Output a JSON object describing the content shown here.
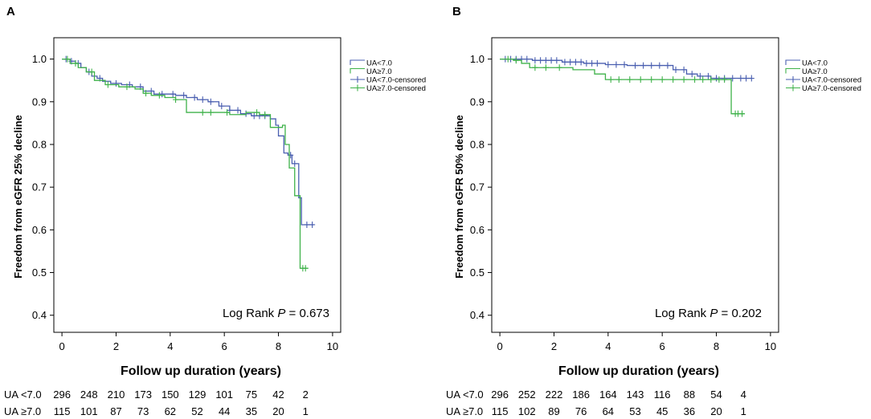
{
  "chart_data": [
    {
      "panel": "A",
      "type": "line",
      "title": "",
      "xlabel": "Follow up duration (years)",
      "ylabel": "Freedom from eGFR 25% decline",
      "xlim": [
        -0.3,
        10.3
      ],
      "ylim": [
        0.36,
        1.05
      ],
      "x_ticks": [
        0,
        2,
        4,
        6,
        8,
        10
      ],
      "y_ticks": [
        0.4,
        0.5,
        0.6,
        0.7,
        0.8,
        0.9,
        1.0
      ],
      "y_tick_labels": [
        "0.4",
        "0.5",
        "0.6",
        "0.7",
        "0.8",
        "0.9",
        "1.0"
      ],
      "annotation": {
        "prefix": "Log Rank ",
        "pvar": "P",
        "suffix": " = 0.673"
      },
      "legend": [
        "UA<7.0",
        "UA≥7.0",
        "UA<7.0-censored",
        "UA≥7.0-censored"
      ],
      "series": [
        {
          "name": "UA<7.0",
          "color": "#4a5fb0",
          "x": [
            0,
            0.3,
            0.5,
            0.7,
            0.9,
            1.1,
            1.3,
            1.5,
            1.8,
            2.2,
            2.6,
            3.0,
            3.4,
            3.8,
            4.2,
            4.6,
            5.0,
            5.4,
            5.8,
            6.2,
            6.6,
            7.0,
            7.4,
            7.7,
            7.9,
            8.0,
            8.2,
            8.35,
            8.5,
            8.6,
            8.75,
            8.85,
            9.3
          ],
          "y": [
            1.0,
            0.995,
            0.99,
            0.98,
            0.97,
            0.96,
            0.955,
            0.948,
            0.943,
            0.94,
            0.935,
            0.925,
            0.918,
            0.918,
            0.915,
            0.91,
            0.905,
            0.9,
            0.89,
            0.88,
            0.872,
            0.867,
            0.867,
            0.86,
            0.845,
            0.82,
            0.78,
            0.775,
            0.755,
            0.755,
            0.675,
            0.612,
            0.612
          ],
          "censored_x": [
            0.15,
            0.35,
            0.6,
            1.0,
            1.4,
            2.0,
            2.5,
            2.9,
            3.3,
            3.7,
            4.1,
            4.5,
            4.9,
            5.2,
            5.5,
            5.9,
            6.2,
            6.5,
            6.8,
            7.1,
            7.3,
            7.5,
            8.45,
            8.6,
            9.05,
            9.25
          ]
        },
        {
          "name": "UA≥7.0",
          "color": "#3fb24a",
          "x": [
            0,
            0.3,
            0.6,
            0.9,
            1.2,
            1.6,
            2.1,
            2.7,
            3.0,
            3.3,
            3.8,
            4.2,
            4.6,
            5.0,
            5.6,
            6.2,
            6.8,
            7.3,
            7.7,
            7.9,
            8.05,
            8.15,
            8.25,
            8.4,
            8.6,
            8.8,
            9.1
          ],
          "y": [
            1.0,
            0.99,
            0.98,
            0.97,
            0.95,
            0.94,
            0.935,
            0.93,
            0.92,
            0.915,
            0.91,
            0.905,
            0.875,
            0.875,
            0.875,
            0.87,
            0.875,
            0.87,
            0.84,
            0.84,
            0.84,
            0.845,
            0.8,
            0.745,
            0.68,
            0.51,
            0.51
          ],
          "censored_x": [
            0.2,
            0.5,
            1.1,
            1.7,
            2.4,
            3.1,
            3.6,
            4.2,
            5.2,
            5.5,
            6.1,
            7.2,
            7.5,
            8.9,
            9.0
          ]
        }
      ],
      "risk_table": [
        {
          "label": "UA <7.0",
          "values": [
            "296",
            "248",
            "210",
            "173",
            "150",
            "129",
            "101",
            "75",
            "42",
            "2"
          ]
        },
        {
          "label": "UA ≥7.0",
          "values": [
            "115",
            "101",
            "87",
            "73",
            "62",
            "52",
            "44",
            "35",
            "20",
            "1"
          ]
        }
      ]
    },
    {
      "panel": "B",
      "type": "line",
      "title": "",
      "xlabel": "Follow up duration (years)",
      "ylabel": "Freedom from eGFR 50% decline",
      "xlim": [
        -0.3,
        10.3
      ],
      "ylim": [
        0.36,
        1.05
      ],
      "x_ticks": [
        0,
        2,
        4,
        6,
        8,
        10
      ],
      "y_ticks": [
        0.4,
        0.5,
        0.6,
        0.7,
        0.8,
        0.9,
        1.0
      ],
      "y_tick_labels": [
        "0.4",
        "0.5",
        "0.6",
        "0.7",
        "0.8",
        "0.9",
        "1.0"
      ],
      "annotation": {
        "prefix": "Log Rank ",
        "pvar": "P",
        "suffix": " = 0.202"
      },
      "legend": [
        "UA<7.0",
        "UA≥7.0",
        "UA<7.0-censored",
        "UA≥7.0-censored"
      ],
      "series": [
        {
          "name": "UA<7.0",
          "color": "#4a5fb0",
          "x": [
            0,
            1.2,
            2.3,
            3.1,
            3.9,
            4.7,
            5.6,
            6.4,
            6.9,
            7.3,
            7.8,
            9.3
          ],
          "y": [
            1.0,
            0.997,
            0.993,
            0.99,
            0.987,
            0.985,
            0.985,
            0.975,
            0.965,
            0.96,
            0.955,
            0.955
          ],
          "censored_x": [
            0.2,
            0.4,
            0.6,
            0.8,
            1.0,
            1.3,
            1.5,
            1.7,
            1.9,
            2.1,
            2.4,
            2.6,
            2.8,
            3.0,
            3.2,
            3.4,
            3.6,
            4.0,
            4.3,
            4.6,
            5.0,
            5.3,
            5.6,
            5.9,
            6.2,
            6.5,
            6.8,
            7.1,
            7.4,
            7.7,
            8.0,
            8.3,
            8.6,
            8.9,
            9.1,
            9.3
          ]
        },
        {
          "name": "UA≥7.0",
          "color": "#3fb24a",
          "x": [
            0,
            0.5,
            0.8,
            1.1,
            2.7,
            3.5,
            3.9,
            8.55,
            9.05
          ],
          "y": [
            1.0,
            0.997,
            0.99,
            0.98,
            0.975,
            0.965,
            0.952,
            0.872,
            0.872
          ],
          "censored_x": [
            0.3,
            0.6,
            1.3,
            1.7,
            2.2,
            4.1,
            4.4,
            4.8,
            5.2,
            5.6,
            6.0,
            6.4,
            6.8,
            7.2,
            7.5,
            7.8,
            8.1,
            8.3,
            8.7,
            8.8,
            8.95
          ]
        }
      ],
      "risk_table": [
        {
          "label": "UA <7.0",
          "values": [
            "296",
            "252",
            "222",
            "186",
            "164",
            "143",
            "116",
            "88",
            "54",
            "4"
          ]
        },
        {
          "label": "UA ≥7.0",
          "values": [
            "115",
            "102",
            "89",
            "76",
            "64",
            "53",
            "45",
            "36",
            "20",
            "1"
          ]
        }
      ]
    }
  ]
}
